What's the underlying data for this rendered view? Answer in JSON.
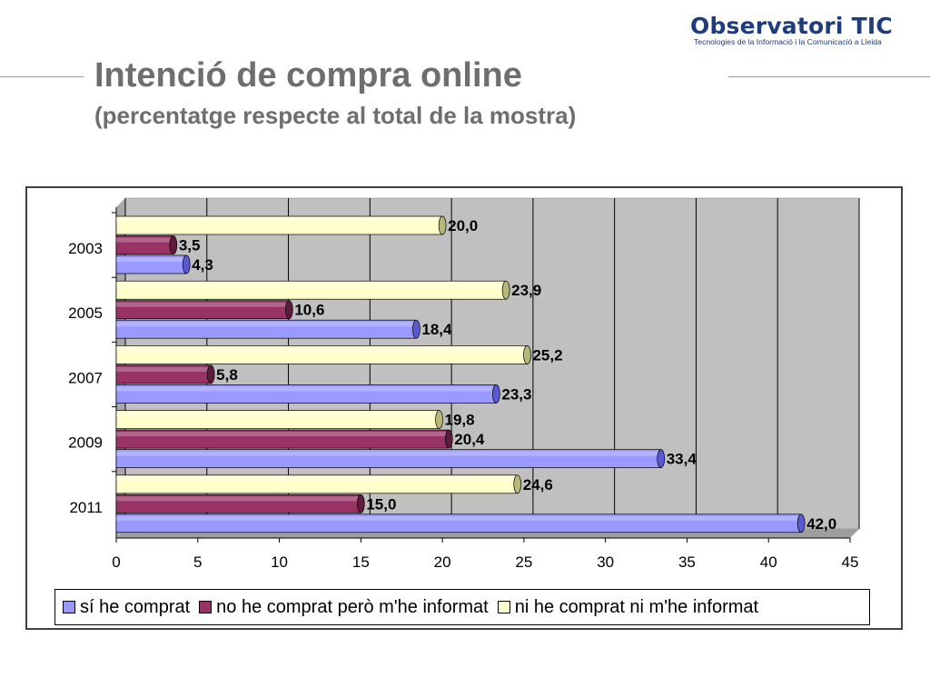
{
  "header": {
    "logo_name": "Observatori TIC",
    "logo_tagline": "Tecnologies de la Informació i la Comunicació a Lleida",
    "title": "Intenció de compra online",
    "subtitle": "(percentatge respecte al total de la mostra)"
  },
  "colors": {
    "blue": "#9999ff",
    "maroon": "#993366",
    "cream": "#ffffcc",
    "wall": "#c0c0c0",
    "text": "#6e6e6e"
  },
  "chart_data": {
    "type": "bar",
    "orientation": "horizontal",
    "style": "3d-cylinder",
    "categories": [
      "2003",
      "2005",
      "2007",
      "2009",
      "2011"
    ],
    "series": [
      {
        "name": "sí he comprat",
        "values": [
          4.3,
          18.4,
          23.3,
          33.4,
          42.0
        ],
        "labels": [
          "4,3",
          "18,4",
          "23,3",
          "33,4",
          "42,0"
        ],
        "color": "#9999ff"
      },
      {
        "name": "no he comprat però m'he informat",
        "values": [
          3.5,
          10.6,
          5.8,
          20.4,
          15.0
        ],
        "labels": [
          "3,5",
          "10,6",
          "5,8",
          "20,4",
          "15,0"
        ],
        "color": "#993366"
      },
      {
        "name": "ni he comprat ni m'he informat",
        "values": [
          20.0,
          23.9,
          25.2,
          19.8,
          24.6
        ],
        "labels": [
          "20,0",
          "23,9",
          "25,2",
          "19,8",
          "24,6"
        ],
        "color": "#ffffcc"
      }
    ],
    "xlim": [
      0,
      45
    ],
    "xticks": [
      "0",
      "5",
      "10",
      "15",
      "20",
      "25",
      "30",
      "35",
      "40",
      "45"
    ],
    "grid": true,
    "legend_position": "bottom"
  }
}
